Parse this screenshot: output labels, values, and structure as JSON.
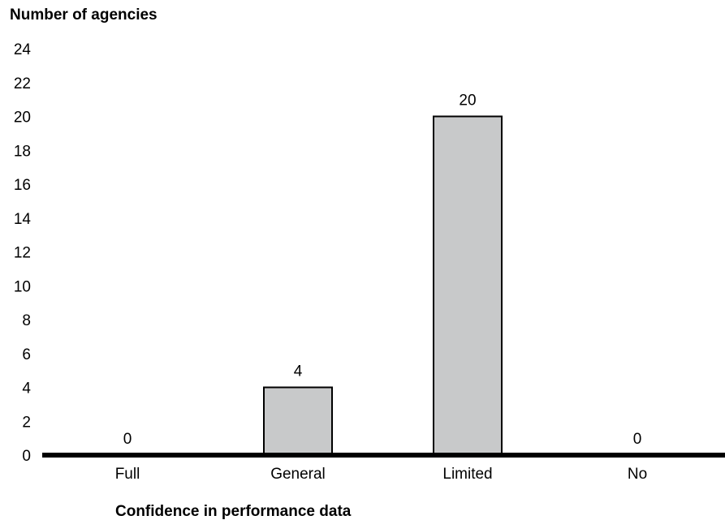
{
  "chart_data": {
    "type": "bar",
    "title": "",
    "ylabel": "Number of agencies",
    "xlabel": "Confidence in performance data",
    "categories": [
      "Full",
      "General",
      "Limited",
      "No"
    ],
    "values": [
      0,
      4,
      20,
      0
    ],
    "data_labels": [
      "0",
      "4",
      "20",
      "0"
    ],
    "ylim": [
      0,
      24
    ],
    "yticks": [
      "0",
      "2",
      "4",
      "6",
      "8",
      "10",
      "12",
      "14",
      "16",
      "18",
      "20",
      "22",
      "24"
    ],
    "grid": false,
    "legend": "none",
    "bar_color": "#c8c9ca",
    "bar_edge_color": "#000000",
    "axis_color": "#000000"
  }
}
